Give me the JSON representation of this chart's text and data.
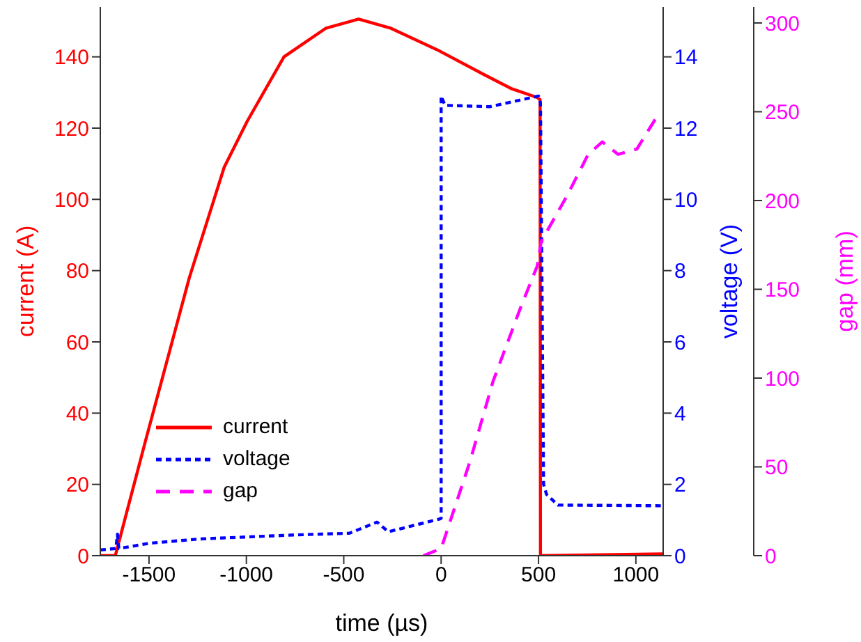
{
  "chart_data": {
    "type": "line",
    "xlabel": "time (µs)",
    "ylabel": "current (A)",
    "y2label": "voltage (V)",
    "y3label": "gap (mm)",
    "xlim": [
      -1750,
      1140
    ],
    "xticks": [
      -1500,
      -1000,
      -500,
      0,
      500,
      1000
    ],
    "ylim": [
      0,
      154
    ],
    "yticks": [
      0,
      20,
      40,
      60,
      80,
      100,
      120,
      140
    ],
    "y2lim": [
      0,
      15.4
    ],
    "y2ticks": [
      0,
      2,
      4,
      6,
      8,
      10,
      12,
      14
    ],
    "y3lim": [
      0,
      309
    ],
    "y3ticks": [
      0,
      50,
      100,
      150,
      200,
      250,
      300
    ],
    "legend": "bottom left",
    "marker": "none",
    "series": [
      {
        "name": "current",
        "color": "#ff0000",
        "line_style": "solid",
        "x": [
          -1750,
          -1673,
          -1519,
          -1293,
          -1114,
          -995,
          -807,
          -593,
          -424,
          -257,
          -21,
          221,
          364,
          493,
          508,
          510,
          1140
        ],
        "values": [
          0,
          0,
          32,
          78,
          109,
          122,
          140,
          148,
          150.6,
          148,
          142,
          135,
          131,
          128.6,
          128,
          0,
          0.5
        ]
      },
      {
        "name": "voltage",
        "color": "#0000ff",
        "line_style": "dotted",
        "axis": "y2",
        "x": [
          -1750,
          -1670,
          -1662,
          -1655,
          -1495,
          -1236,
          -757,
          -471,
          -329,
          -271,
          -7,
          0,
          0,
          20,
          250,
          500,
          510,
          526,
          541,
          600,
          1140
        ],
        "values": [
          0.16,
          0.2,
          0.6,
          0.2,
          0.35,
          0.47,
          0.58,
          0.63,
          0.94,
          0.67,
          1.03,
          1.05,
          12.9,
          12.64,
          12.6,
          12.9,
          12.7,
          2,
          1.72,
          1.42,
          1.4
        ]
      },
      {
        "name": "gap",
        "color": "#ff00ff",
        "line_style": "dashed",
        "axis": "y3",
        "x": [
          -91,
          0,
          148,
          266,
          409,
          493,
          514,
          648,
          755,
          827,
          909,
          1005,
          1112
        ],
        "values": [
          0,
          4,
          53,
          98,
          140,
          163,
          177,
          203,
          226,
          233,
          226,
          229,
          248
        ]
      }
    ]
  }
}
